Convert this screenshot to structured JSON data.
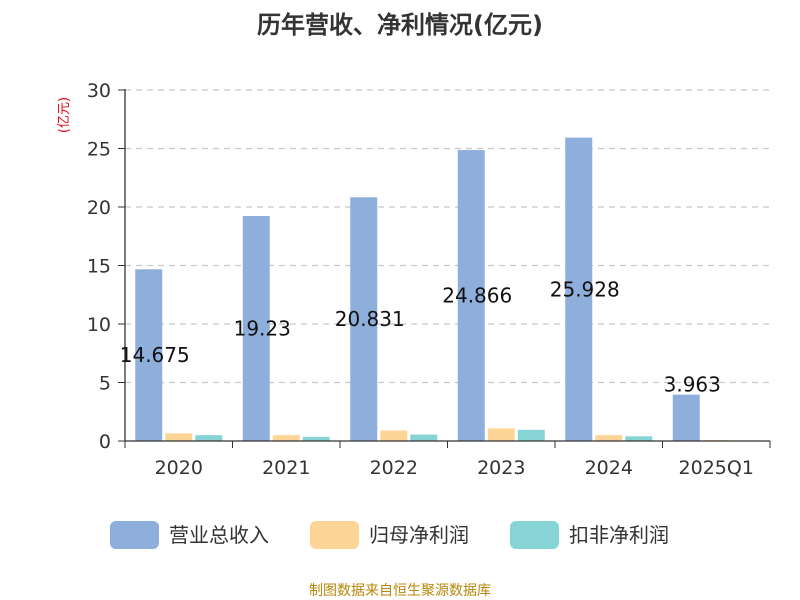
{
  "chart_data": {
    "type": "bar",
    "title": "历年营收、净利情况(亿元)",
    "ylabel": "(亿元)",
    "xlabel": "",
    "categories": [
      "2020",
      "2021",
      "2022",
      "2023",
      "2024",
      "2025Q1"
    ],
    "ylim": [
      0,
      30
    ],
    "yticks": [
      0,
      5,
      10,
      15,
      20,
      25,
      30
    ],
    "grid": true,
    "legend_position": "bottom",
    "series": [
      {
        "name": "营业总收入",
        "color": "#8eaedb",
        "values": [
          14.675,
          19.23,
          20.831,
          24.866,
          25.928,
          3.963
        ]
      },
      {
        "name": "归母净利润",
        "color": "#fdd597",
        "values": [
          0.65,
          0.5,
          0.9,
          1.08,
          0.5,
          0.08
        ]
      },
      {
        "name": "扣非净利润",
        "color": "#86d4d6",
        "values": [
          0.5,
          0.35,
          0.55,
          0.95,
          0.4,
          0.05
        ]
      }
    ],
    "data_labels": [
      "14.675",
      "19.23",
      "20.831",
      "24.866",
      "25.928",
      "3.963"
    ]
  },
  "footer": {
    "source": "制图数据来自恒生聚源数据库"
  }
}
